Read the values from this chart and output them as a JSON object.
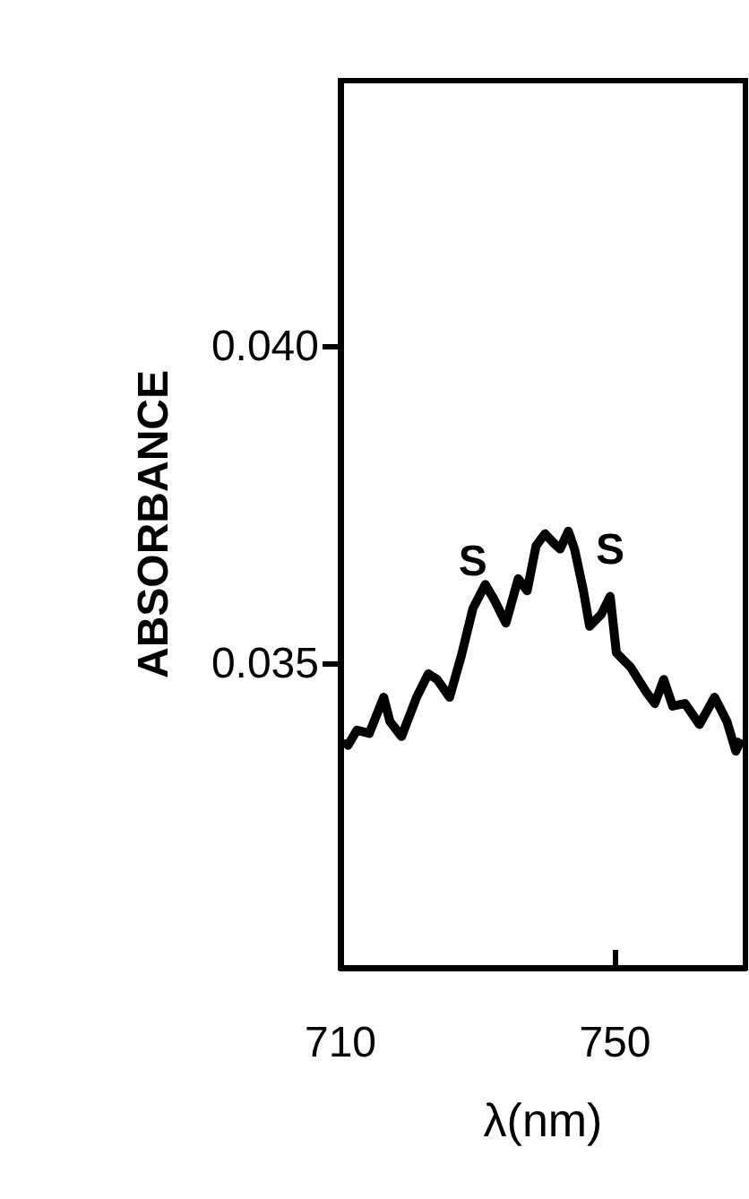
{
  "chart_data": {
    "type": "line",
    "xlabel": "λ(nm)",
    "ylabel": "ABSORBANCE",
    "color": "#000000",
    "x": [
      710.9,
      711.1,
      712.4,
      714.2,
      716.3,
      717.2,
      718.9,
      721.1,
      722.8,
      724.1,
      725.9,
      727.6,
      729.3,
      731.1,
      732.4,
      734.1,
      735.9,
      737.2,
      738.5,
      739.8,
      741.1,
      742.0,
      743.2,
      744.1,
      745.4,
      746.3,
      748.0,
      749.3,
      750.2,
      752.3,
      754.5,
      755.8,
      757.1,
      758.4,
      760.2,
      762.3,
      764.5,
      766.3,
      767.6,
      768.4
    ],
    "values": [
      0.03381,
      0.03371,
      0.03395,
      0.0339,
      0.03447,
      0.03409,
      0.03385,
      0.03447,
      0.03484,
      0.03475,
      0.03447,
      0.03512,
      0.03587,
      0.03625,
      0.03601,
      0.03564,
      0.03634,
      0.03615,
      0.03686,
      0.03705,
      0.0369,
      0.03681,
      0.03709,
      0.03681,
      0.03615,
      0.03559,
      0.03578,
      0.03606,
      0.03517,
      0.03494,
      0.03456,
      0.03437,
      0.03475,
      0.03433,
      0.03437,
      0.03404,
      0.03447,
      0.03409,
      0.03362,
      0.03381
    ],
    "xlim": [
      710,
      769
    ],
    "ylim": [
      0.0302,
      0.0442
    ],
    "xticks": [
      710,
      750
    ],
    "yticks": [
      {
        "value": 0.035,
        "label": "0.035"
      },
      {
        "value": 0.04,
        "label": "0.040"
      }
    ],
    "annotations": [
      {
        "text": "S",
        "x": 729.3,
        "y": 0.03587
      },
      {
        "text": "S",
        "x": 749.3,
        "y": 0.03606
      }
    ]
  }
}
